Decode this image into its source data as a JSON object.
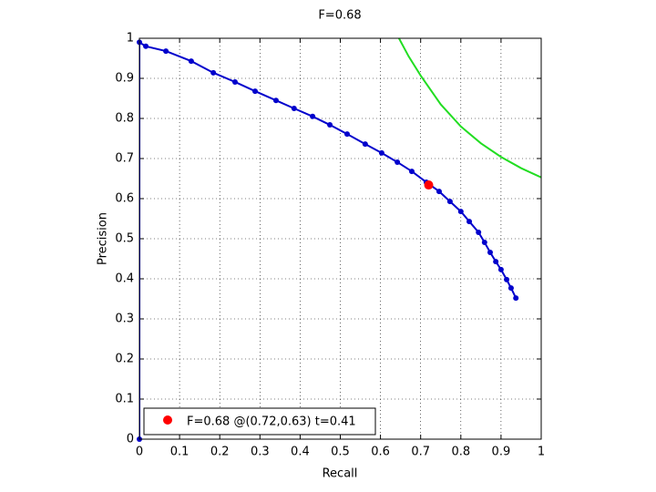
{
  "chart_data": {
    "type": "line",
    "title": "F=0.68",
    "x_label": "Recall",
    "y_label": "Precision",
    "xlim": [
      0,
      1
    ],
    "ylim": [
      0,
      1
    ],
    "xticks": [
      0,
      0.1,
      0.2,
      0.3,
      0.4,
      0.5,
      0.6,
      0.7,
      0.8,
      0.9,
      1
    ],
    "yticks": [
      0,
      0.1,
      0.2,
      0.3,
      0.4,
      0.5,
      0.6,
      0.7,
      0.8,
      0.9,
      1
    ],
    "grid": true,
    "curve": {
      "color": "#0000cc",
      "x": [
        0,
        0,
        0.016,
        0.066,
        0.129,
        0.184,
        0.238,
        0.288,
        0.34,
        0.385,
        0.431,
        0.474,
        0.517,
        0.562,
        0.603,
        0.642,
        0.678,
        0.714,
        0.746,
        0.773,
        0.8,
        0.821,
        0.844,
        0.859,
        0.873,
        0.887,
        0.9,
        0.914,
        0.925,
        0.937
      ],
      "values": [
        0,
        0.99,
        0.98,
        0.968,
        0.943,
        0.914,
        0.891,
        0.868,
        0.845,
        0.825,
        0.805,
        0.784,
        0.761,
        0.736,
        0.714,
        0.691,
        0.668,
        0.641,
        0.618,
        0.593,
        0.568,
        0.543,
        0.516,
        0.491,
        0.466,
        0.443,
        0.423,
        0.398,
        0.377,
        0.352
      ]
    },
    "iso_f": {
      "color": "#22dd22",
      "x": [
        0.646,
        0.67,
        0.7,
        0.75,
        0.8,
        0.85,
        0.9,
        0.95,
        1
      ],
      "values": [
        1,
        0.955,
        0.907,
        0.835,
        0.78,
        0.738,
        0.704,
        0.676,
        0.653
      ]
    },
    "point": {
      "name": "F=0.68 @(0.72,0.63) t=0.41",
      "color": "#ff0000",
      "x": 0.72,
      "y": 0.634
    }
  }
}
